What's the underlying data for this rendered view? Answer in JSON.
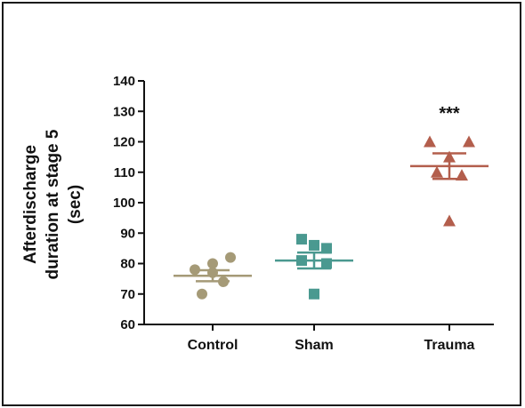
{
  "chart_data": {
    "type": "scatter",
    "ylabel_lines": [
      "Afterdischarge",
      "duration at stage 5",
      "(sec)"
    ],
    "ylim": [
      60,
      140
    ],
    "yticks": [
      60,
      70,
      80,
      90,
      100,
      110,
      120,
      130,
      140
    ],
    "grid": false,
    "categories": [
      "Control",
      "Sham",
      "Trauma"
    ],
    "series": [
      {
        "category": "Control",
        "marker": "circle",
        "color": "#a59a77",
        "values": [
          78,
          82,
          80,
          70,
          74,
          77
        ],
        "mean": 76,
        "sem": 1.8
      },
      {
        "category": "Sham",
        "marker": "square",
        "color": "#4a9990",
        "values": [
          88,
          85,
          86,
          81,
          80,
          70
        ],
        "mean": 81,
        "sem": 2.6
      },
      {
        "category": "Trauma",
        "marker": "triangle",
        "color": "#b35e4c",
        "values": [
          120,
          120,
          115,
          110,
          109,
          94
        ],
        "mean": 112,
        "sem": 4.2
      }
    ],
    "annotations": [
      {
        "category": "Trauma",
        "text": "***"
      }
    ]
  }
}
